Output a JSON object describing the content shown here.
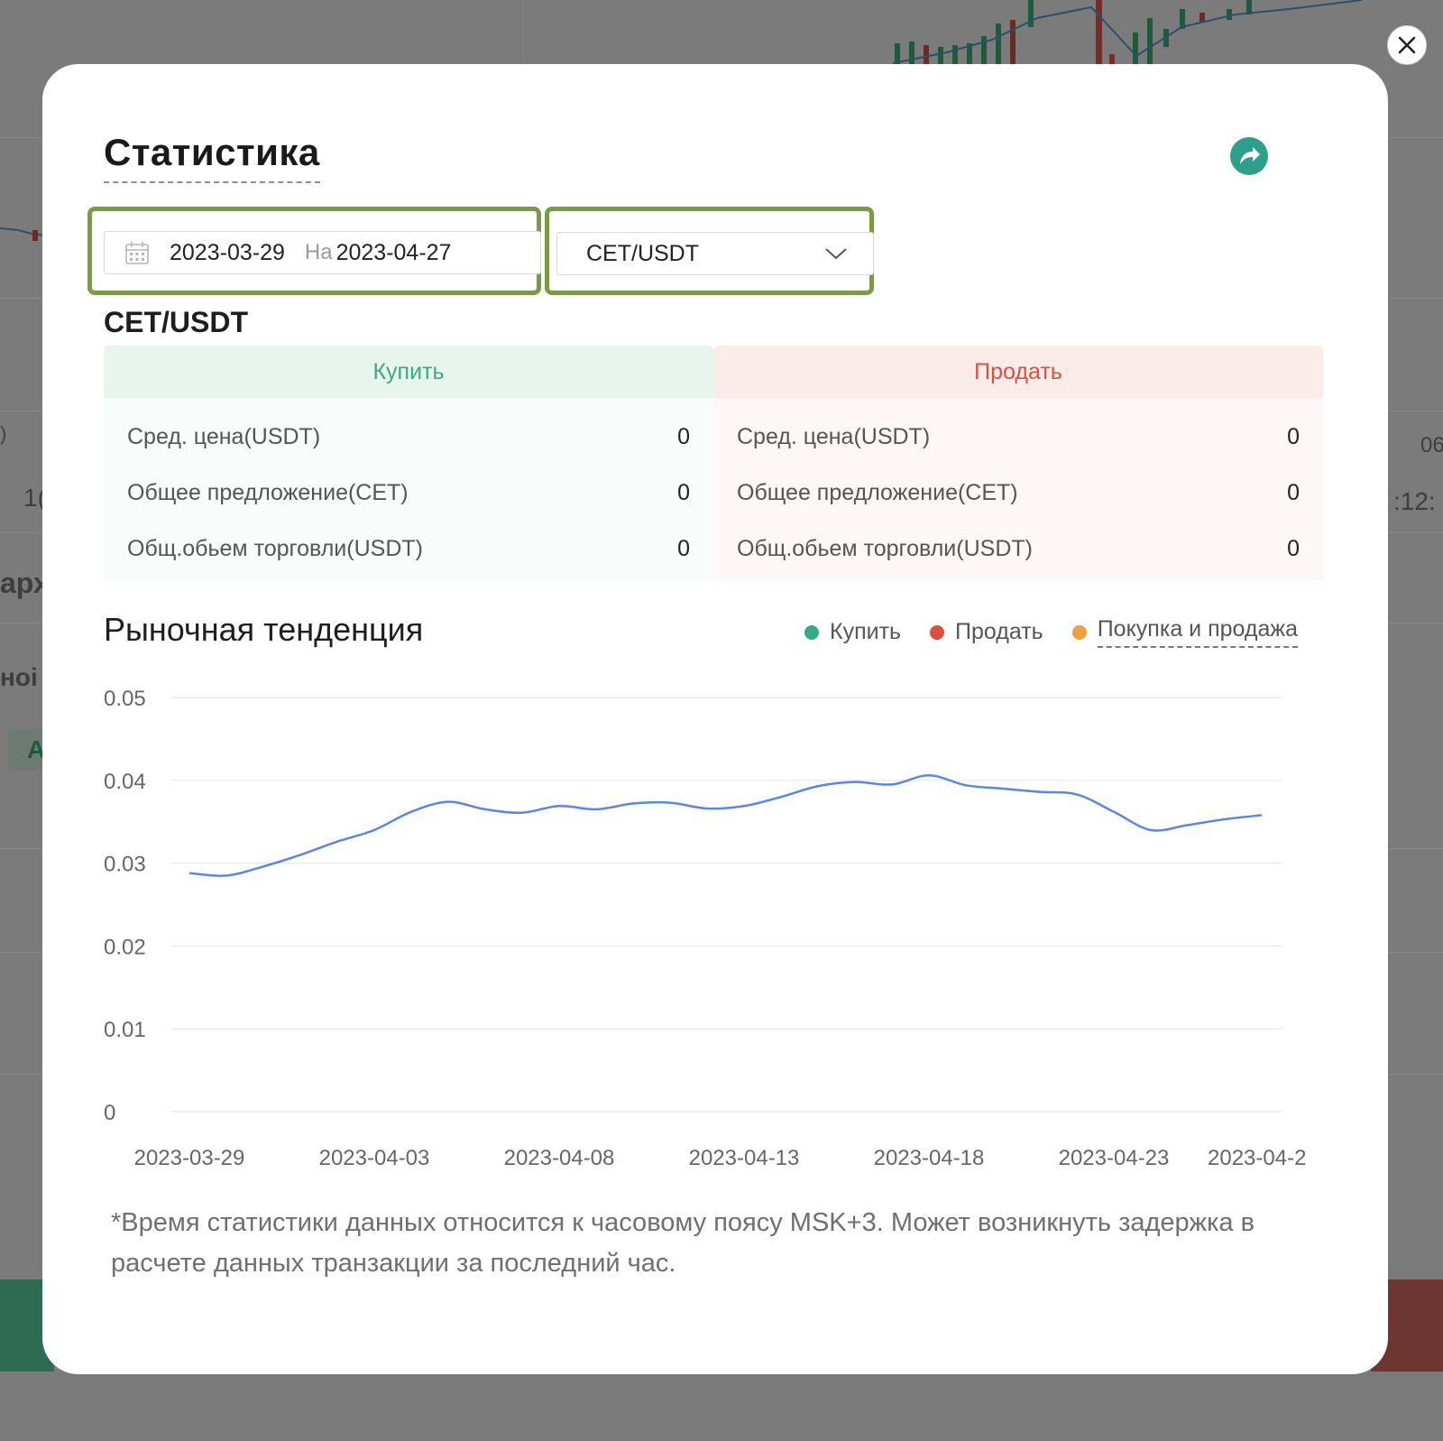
{
  "dialog": {
    "title": "Статистика",
    "share_icon": "share-arrow-icon",
    "close_icon": "close-icon",
    "accent": "#2f9e8a"
  },
  "filters": {
    "date_from": "2023-03-29",
    "date_separator": "На",
    "date_to": "2023-04-27",
    "calendar_icon": "calendar-icon",
    "pair_value": "CET/USDT",
    "pair_icon": "chevron-down-icon"
  },
  "pair_heading": "CET/USDT",
  "buy": {
    "label": "Купить",
    "color": "#3aaa86",
    "rows": [
      {
        "label": "Сред. цена(USDT)",
        "value": "0"
      },
      {
        "label": "Общее предложение(CET)",
        "value": "0"
      },
      {
        "label": "Общ.обьем торговли(USDT)",
        "value": "0"
      }
    ]
  },
  "sell": {
    "label": "Продать",
    "color": "#d9503f",
    "rows": [
      {
        "label": "Сред. цена(USDT)",
        "value": "0"
      },
      {
        "label": "Общее предложение(CET)",
        "value": "0"
      },
      {
        "label": "Общ.обьем торговли(USDT)",
        "value": "0"
      }
    ]
  },
  "trend": {
    "title": "Рыночная тенденция",
    "legend": [
      {
        "label": "Купить",
        "color": "#3aaa86"
      },
      {
        "label": "Продать",
        "color": "#d9503f"
      },
      {
        "label": "Покупка и продажа",
        "color": "#f0a040"
      }
    ]
  },
  "chart_data": {
    "type": "line",
    "ylim": [
      0,
      0.05
    ],
    "yticks": [
      "0",
      "0.01",
      "0.02",
      "0.03",
      "0.04",
      "0.05"
    ],
    "xtick_labels": [
      "2023-03-29",
      "2023-04-03",
      "2023-04-08",
      "2023-04-13",
      "2023-04-18",
      "2023-04-23",
      "2023-04-2"
    ],
    "grid": true,
    "line_color": "#5b86e5",
    "x": [
      "2023-03-29",
      "2023-03-30",
      "2023-03-31",
      "2023-04-01",
      "2023-04-02",
      "2023-04-03",
      "2023-04-04",
      "2023-04-05",
      "2023-04-06",
      "2023-04-07",
      "2023-04-08",
      "2023-04-09",
      "2023-04-10",
      "2023-04-11",
      "2023-04-12",
      "2023-04-13",
      "2023-04-14",
      "2023-04-15",
      "2023-04-16",
      "2023-04-17",
      "2023-04-18",
      "2023-04-19",
      "2023-04-20",
      "2023-04-21",
      "2023-04-22",
      "2023-04-23",
      "2023-04-24",
      "2023-04-25",
      "2023-04-26",
      "2023-04-27"
    ],
    "values": [
      0.0288,
      0.0285,
      0.0296,
      0.031,
      0.0326,
      0.034,
      0.0362,
      0.0374,
      0.0365,
      0.0361,
      0.0369,
      0.0365,
      0.0372,
      0.0373,
      0.0366,
      0.0369,
      0.038,
      0.0393,
      0.0398,
      0.0395,
      0.0406,
      0.0394,
      0.039,
      0.0386,
      0.0383,
      0.0362,
      0.034,
      0.0346,
      0.0353,
      0.0358
    ]
  },
  "footnote": "*Время статистики данных относится к часовому поясу MSK+3. Может возникнуть задержка в расчете данных транзакции за последний час."
}
